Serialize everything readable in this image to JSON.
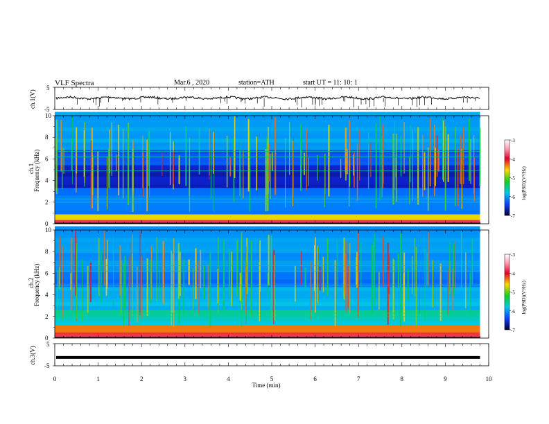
{
  "header": {
    "title": "VLF  Spectra",
    "date": "Mar.6  , 2020",
    "station": "station=ATH",
    "start": "start  UT  =   11: 10: 1"
  },
  "chart_data": [
    {
      "type": "line",
      "panel": "ch1-waveform",
      "ylabel": "ch.1(V)",
      "yticks": [
        "5",
        "-5"
      ],
      "ylim": [
        -5,
        5
      ],
      "series": [
        {
          "values": "noisy trace near baseline with sparse negative spikes"
        }
      ],
      "baseline": 0.2
    },
    {
      "type": "heatmap",
      "panel": "ch1-spectrogram",
      "ylabel_top": "ch.1",
      "ylabel": "Frequency  (kHz)",
      "yticks": [
        "0",
        "2",
        "4",
        "6",
        "8",
        "10"
      ],
      "ylim": [
        0,
        10
      ],
      "colorbar": {
        "label": "log(PSD)(V²/Hz)",
        "ticks": [
          "-3",
          "-4",
          "-5",
          "-6",
          "-7"
        ],
        "range": [
          -7,
          -3
        ]
      }
    },
    {
      "type": "heatmap",
      "panel": "ch2-spectrogram",
      "ylabel_top": "ch.2",
      "ylabel": "Frequency  (kHz)",
      "yticks": [
        "0",
        "2",
        "4",
        "6",
        "8",
        "10"
      ],
      "ylim": [
        0,
        10
      ],
      "colorbar": {
        "label": "log(PSD)(V²/Hz)",
        "ticks": [
          "-3",
          "-4",
          "-5",
          "-6",
          "-7"
        ],
        "range": [
          -7,
          -3
        ]
      }
    },
    {
      "type": "line",
      "panel": "ch3-waveform",
      "ylabel": "ch.3(V)",
      "yticks": [
        "5",
        "-5"
      ],
      "ylim": [
        -5,
        5
      ],
      "series": [
        {
          "values": "constant thick line"
        }
      ],
      "baseline": -1.2
    }
  ],
  "xaxis": {
    "label": "Time  (min)",
    "ticks": [
      "0",
      "1",
      "2",
      "3",
      "4",
      "5",
      "6",
      "7",
      "8",
      "9",
      "10"
    ],
    "xlim": [
      0,
      10
    ],
    "data_end": 9.8
  }
}
